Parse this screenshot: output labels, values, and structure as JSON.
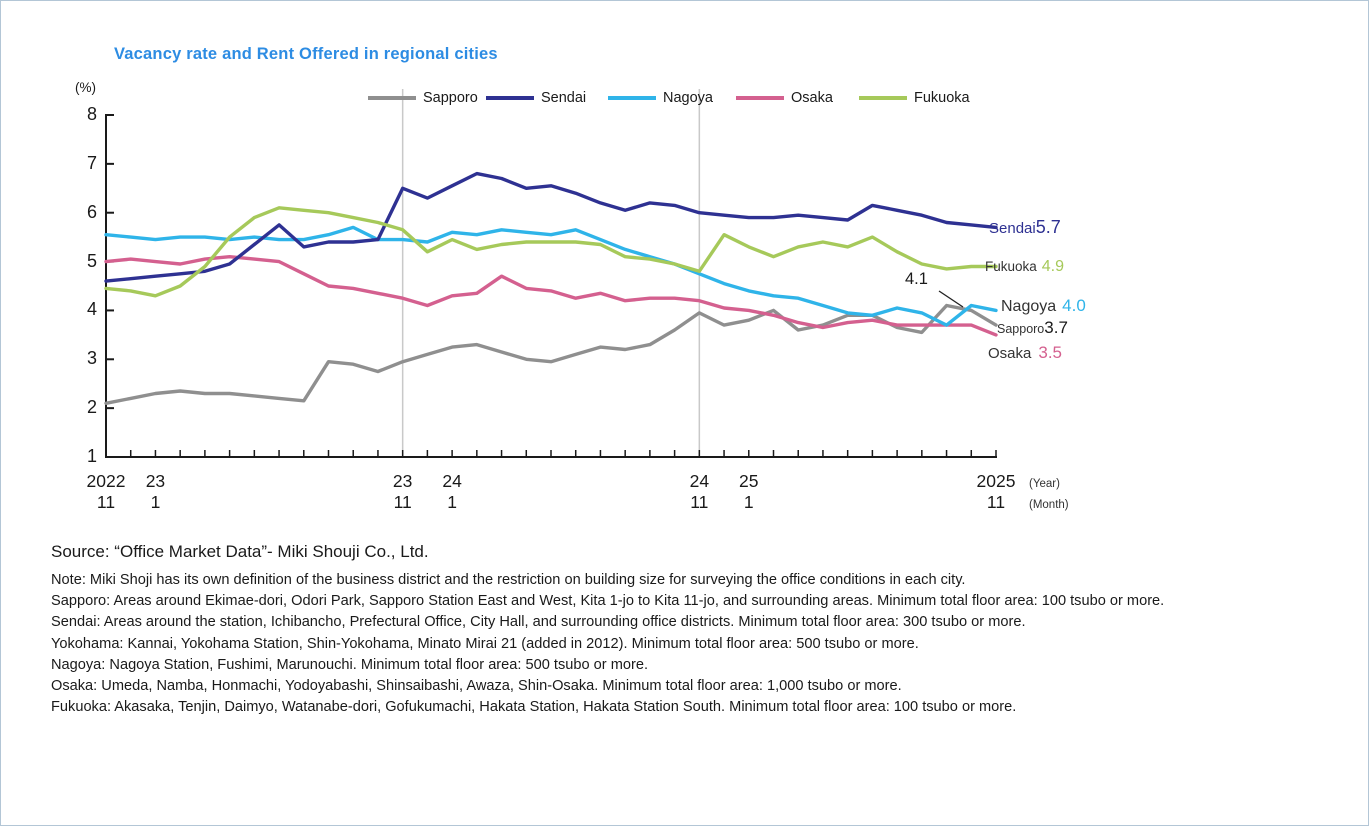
{
  "page": {
    "background": "#ffffff",
    "border_color": "#b3c6d6"
  },
  "chart": {
    "title": "Vacancy rate and Rent Offered  in regional cities",
    "title_color": "#2d8ce3",
    "y_axis_unit": "(%)",
    "x_axis_year_label": "(Year)",
    "x_axis_month_label": "(Month)",
    "annotation_text": "4.1",
    "axis_color": "#1a1a1a",
    "gridline_color": "#c9c9c9"
  },
  "chart_data": {
    "type": "line",
    "title": "Vacancy rate and Rent Offered  in regional cities",
    "ylabel": "(%)",
    "ylim": [
      1,
      8
    ],
    "y_ticks": [
      1,
      2,
      3,
      4,
      5,
      6,
      7,
      8
    ],
    "grid": "vertical lines at 2023/11 and 2024/11 only",
    "gridline_indices": [
      12,
      24
    ],
    "legend_position": "top",
    "x": [
      "2022/11",
      "2022/12",
      "2023/1",
      "2023/2",
      "2023/3",
      "2023/4",
      "2023/5",
      "2023/6",
      "2023/7",
      "2023/8",
      "2023/9",
      "2023/10",
      "2023/11",
      "2023/12",
      "2024/1",
      "2024/2",
      "2024/3",
      "2024/4",
      "2024/5",
      "2024/6",
      "2024/7",
      "2024/8",
      "2024/9",
      "2024/10",
      "2024/11",
      "2024/12",
      "2025/1",
      "2025/2",
      "2025/3",
      "2025/4",
      "2025/5",
      "2025/6",
      "2025/7",
      "2025/8",
      "2025/9",
      "2025/10",
      "2025/11"
    ],
    "x_major_labels": [
      {
        "index": 0,
        "year": "2022",
        "month": "11"
      },
      {
        "index": 2,
        "year": "23",
        "month": "1"
      },
      {
        "index": 12,
        "year": "23",
        "month": "11"
      },
      {
        "index": 14,
        "year": "24",
        "month": "1"
      },
      {
        "index": 24,
        "year": "24",
        "month": "11"
      },
      {
        "index": 26,
        "year": "25",
        "month": "1"
      },
      {
        "index": 36,
        "year": "2025",
        "month": "11"
      }
    ],
    "series": [
      {
        "name": "Sapporo",
        "color": "#8f8f8f",
        "values": [
          2.1,
          2.2,
          2.3,
          2.35,
          2.3,
          2.3,
          2.25,
          2.2,
          2.15,
          2.95,
          2.9,
          2.75,
          2.95,
          3.1,
          3.25,
          3.3,
          3.15,
          3.0,
          2.95,
          3.1,
          3.25,
          3.2,
          3.3,
          3.6,
          3.95,
          3.7,
          3.8,
          4.0,
          3.6,
          3.7,
          3.9,
          3.9,
          3.65,
          3.55,
          4.1,
          4.0,
          3.7
        ]
      },
      {
        "name": "Sendai",
        "color": "#2e3192",
        "values": [
          4.6,
          4.65,
          4.7,
          4.75,
          4.8,
          4.95,
          5.35,
          5.75,
          5.3,
          5.4,
          5.4,
          5.45,
          6.5,
          6.3,
          6.55,
          6.8,
          6.7,
          6.5,
          6.55,
          6.4,
          6.2,
          6.05,
          6.2,
          6.15,
          6.0,
          5.95,
          5.9,
          5.9,
          5.95,
          5.9,
          5.85,
          6.15,
          6.05,
          5.95,
          5.8,
          5.75,
          5.7
        ]
      },
      {
        "name": "Nagoya",
        "color": "#2fb4e9",
        "values": [
          5.55,
          5.5,
          5.45,
          5.5,
          5.5,
          5.45,
          5.5,
          5.45,
          5.45,
          5.55,
          5.7,
          5.45,
          5.45,
          5.4,
          5.6,
          5.55,
          5.65,
          5.6,
          5.55,
          5.65,
          5.45,
          5.25,
          5.1,
          4.95,
          4.75,
          4.55,
          4.4,
          4.3,
          4.25,
          4.1,
          3.95,
          3.9,
          4.05,
          3.95,
          3.7,
          4.1,
          4.0
        ]
      },
      {
        "name": "Osaka",
        "color": "#d4608f",
        "values": [
          5.0,
          5.05,
          5.0,
          4.95,
          5.05,
          5.1,
          5.05,
          5.0,
          4.75,
          4.5,
          4.45,
          4.35,
          4.25,
          4.1,
          4.3,
          4.35,
          4.7,
          4.45,
          4.4,
          4.25,
          4.35,
          4.2,
          4.25,
          4.25,
          4.2,
          4.05,
          4.0,
          3.9,
          3.75,
          3.65,
          3.75,
          3.8,
          3.7,
          3.7,
          3.7,
          3.7,
          3.5
        ]
      },
      {
        "name": "Fukuoka",
        "color": "#a6c95a",
        "values": [
          4.45,
          4.4,
          4.3,
          4.5,
          4.9,
          5.5,
          5.9,
          6.1,
          6.05,
          6.0,
          5.9,
          5.8,
          5.65,
          5.2,
          5.45,
          5.25,
          5.35,
          5.4,
          5.4,
          5.4,
          5.35,
          5.1,
          5.05,
          4.95,
          4.8,
          5.55,
          5.3,
          5.1,
          5.3,
          5.4,
          5.3,
          5.5,
          5.2,
          4.95,
          4.85,
          4.9,
          4.9
        ]
      }
    ],
    "annotations": [
      {
        "text": "4.1",
        "note": "peak of Sapporo/Nagoya crossing near 2025/9-10"
      }
    ],
    "end_labels": [
      {
        "series": "Sendai",
        "label": "Sendai",
        "value": "5.7",
        "label_color": "#2e3192",
        "value_color": "#2e3192"
      },
      {
        "series": "Fukuoka",
        "label": "Fukuoka",
        "value": "4.9",
        "label_color": "#333333",
        "value_color": "#a6c95a"
      },
      {
        "series": "Nagoya",
        "label": "Nagoya",
        "value": "4.0",
        "label_color": "#333333",
        "value_color": "#2fb4e9"
      },
      {
        "series": "Sapporo",
        "label": "Sapporo",
        "value": "3.7",
        "label_color": "#333333",
        "value_color": "#1a1a1a"
      },
      {
        "series": "Osaka",
        "label": "Osaka",
        "value": "3.5",
        "label_color": "#333333",
        "value_color": "#d4608f"
      }
    ]
  },
  "source": "Source: “Office Market Data”- Miki Shouji Co., Ltd.",
  "notes": [
    "Note: Miki Shoji has its own definition of the business district and the restriction on building size for surveying the office conditions in each city.",
    "Sapporo: Areas around Ekimae-dori, Odori Park, Sapporo Station East and West, Kita 1-jo to Kita 11-jo, and surrounding areas. Minimum total floor area: 100 tsubo or more.",
    "Sendai: Areas around the station, Ichibancho, Prefectural Office, City Hall, and surrounding office districts. Minimum total floor area: 300 tsubo or more.",
    "Yokohama: Kannai, Yokohama Station, Shin-Yokohama, Minato Mirai 21 (added in 2012). Minimum total floor area: 500 tsubo or more.",
    "Nagoya: Nagoya Station, Fushimi, Marunouchi. Minimum total floor area: 500 tsubo or more.",
    "Osaka: Umeda, Namba, Honmachi, Yodoyabashi, Shinsaibashi, Awaza, Shin-Osaka. Minimum total floor area: 1,000 tsubo or more.",
    "Fukuoka: Akasaka, Tenjin, Daimyo, Watanabe-dori, Gofukumachi, Hakata Station, Hakata Station South. Minimum total floor area: 100 tsubo or more."
  ]
}
